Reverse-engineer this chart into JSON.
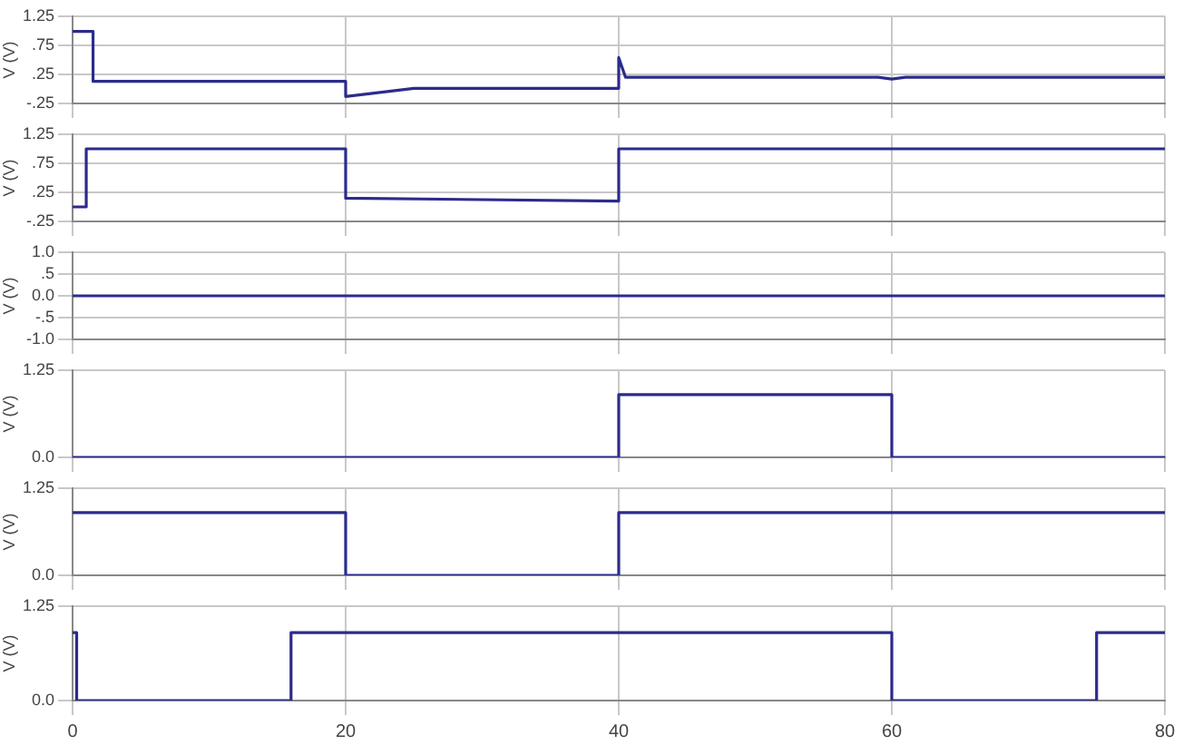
{
  "chart_data": [
    {
      "type": "line",
      "ylabel": "V (V)",
      "xlim": [
        0,
        80
      ],
      "xticks": [
        0,
        20,
        40,
        60,
        80
      ],
      "ylim": [
        -0.25,
        1.25
      ],
      "yticks": [
        {
          "value": 1.25,
          "label": "1.25"
        },
        {
          "value": 0.75,
          "label": ".75"
        },
        {
          "value": 0.25,
          "label": ".25"
        },
        {
          "value": -0.25,
          "label": "-.25"
        }
      ],
      "grid": true,
      "legend": false,
      "marker": "none",
      "tick_labels": "y",
      "x": [
        0,
        1.5,
        1.5,
        20,
        20,
        25,
        40,
        40,
        40.5,
        59,
        60,
        61,
        80
      ],
      "series": [
        {
          "color": "#2b2b8c",
          "values": [
            0.99,
            0.99,
            0.13,
            0.13,
            -0.13,
            0.01,
            0.01,
            0.54,
            0.2,
            0.2,
            0.17,
            0.2,
            0.2
          ]
        }
      ]
    },
    {
      "type": "line",
      "ylabel": "V (V)",
      "xlim": [
        0,
        80
      ],
      "xticks": [
        0,
        20,
        40,
        60,
        80
      ],
      "ylim": [
        -0.25,
        1.25
      ],
      "yticks": [
        {
          "value": 1.25,
          "label": "1.25"
        },
        {
          "value": 0.75,
          "label": ".75"
        },
        {
          "value": 0.25,
          "label": ".25"
        },
        {
          "value": -0.25,
          "label": "-.25"
        }
      ],
      "grid": true,
      "legend": false,
      "marker": "none",
      "tick_labels": "y",
      "x": [
        0,
        1,
        1,
        20,
        20,
        40,
        40,
        80
      ],
      "series": [
        {
          "color": "#2b2b8c",
          "values": [
            0,
            0,
            1,
            1,
            0.15,
            0.1,
            1,
            1
          ]
        }
      ]
    },
    {
      "type": "line",
      "ylabel": "V (V)",
      "xlim": [
        0,
        80
      ],
      "xticks": [
        0,
        20,
        40,
        60,
        80
      ],
      "ylim": [
        -1,
        1
      ],
      "yticks": [
        {
          "value": 1,
          "label": "1.0"
        },
        {
          "value": 0.5,
          "label": ".5"
        },
        {
          "value": 0,
          "label": "0.0"
        },
        {
          "value": -0.5,
          "label": "-.5"
        },
        {
          "value": -1,
          "label": "-1.0"
        }
      ],
      "grid": true,
      "legend": false,
      "marker": "none",
      "tick_labels": "y",
      "x": [
        0,
        80
      ],
      "series": [
        {
          "color": "#2b2b8c",
          "values": [
            0,
            0
          ]
        }
      ]
    },
    {
      "type": "line",
      "ylabel": "V (V)",
      "xlim": [
        0,
        80
      ],
      "xticks": [
        0,
        20,
        40,
        60,
        80
      ],
      "ylim": [
        0,
        1.25
      ],
      "yticks": [
        {
          "value": 1.25,
          "label": "1.25"
        },
        {
          "value": 0,
          "label": "0.0"
        }
      ],
      "grid": true,
      "legend": false,
      "marker": "none",
      "tick_labels": "y",
      "x": [
        0,
        40,
        40,
        60,
        60,
        80
      ],
      "series": [
        {
          "color": "#2b2b8c",
          "values": [
            0,
            0,
            0.9,
            0.9,
            0,
            0
          ]
        }
      ]
    },
    {
      "type": "line",
      "ylabel": "V (V)",
      "xlim": [
        0,
        80
      ],
      "xticks": [
        0,
        20,
        40,
        60,
        80
      ],
      "ylim": [
        0,
        1.25
      ],
      "yticks": [
        {
          "value": 1.25,
          "label": "1.25"
        },
        {
          "value": 0,
          "label": "0.0"
        }
      ],
      "grid": true,
      "legend": false,
      "marker": "none",
      "tick_labels": "y",
      "x": [
        0,
        20,
        20,
        40,
        40,
        80
      ],
      "series": [
        {
          "color": "#2b2b8c",
          "values": [
            0.9,
            0.9,
            0,
            0,
            0.9,
            0.9
          ]
        }
      ]
    },
    {
      "type": "line",
      "ylabel": "V (V)",
      "xlim": [
        0,
        80
      ],
      "xticks": [
        0,
        20,
        40,
        60,
        80
      ],
      "ylim": [
        0,
        1.25
      ],
      "yticks": [
        {
          "value": 1.25,
          "label": "1.25"
        },
        {
          "value": 0,
          "label": "0.0"
        }
      ],
      "grid": true,
      "legend": false,
      "marker": "none",
      "x": [
        0,
        0.3,
        0.3,
        16,
        16,
        60,
        60,
        75,
        75,
        80
      ],
      "series": [
        {
          "color": "#2b2b8c",
          "values": [
            0.9,
            0.9,
            0,
            0,
            0.9,
            0.9,
            0,
            0,
            0.9,
            0.9
          ]
        }
      ]
    }
  ]
}
